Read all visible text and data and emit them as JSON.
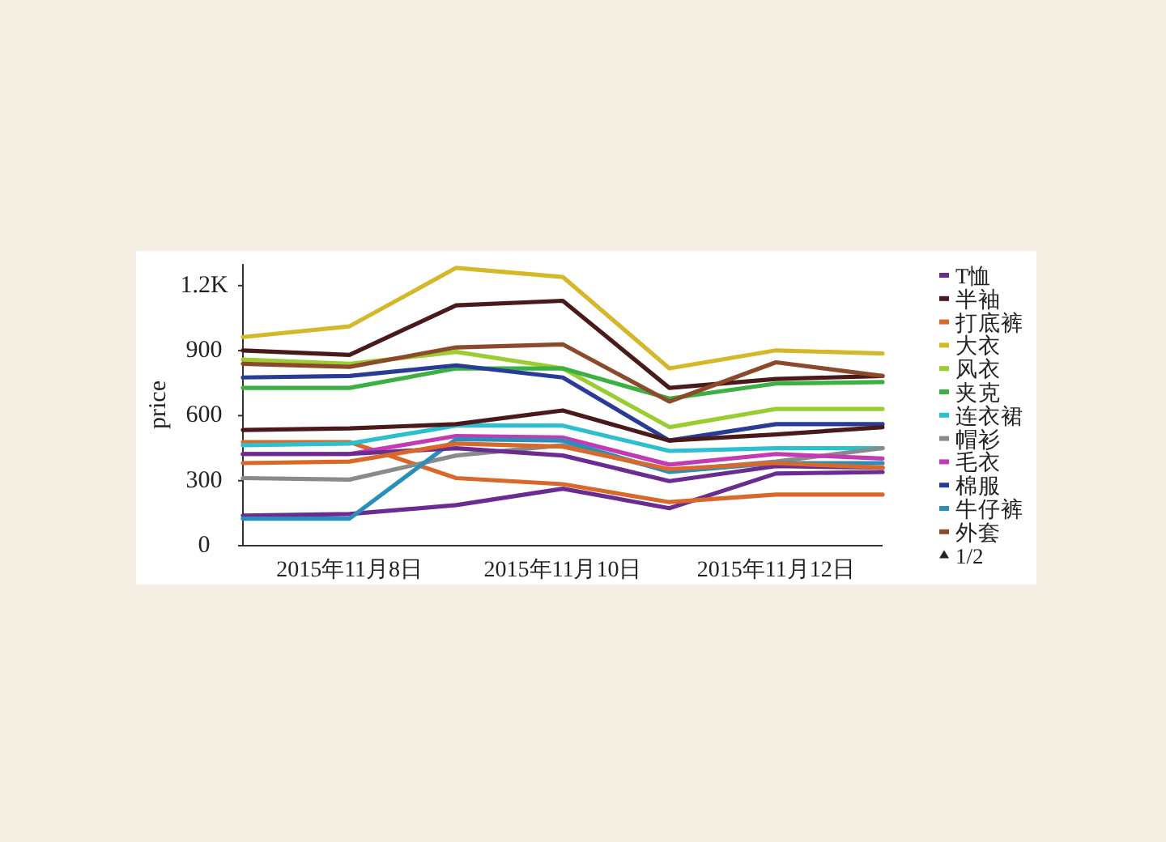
{
  "chart_data": {
    "type": "line",
    "ylabel": "price",
    "categories": [
      null,
      "2015年11月8日",
      null,
      "2015年11月10日",
      null,
      "2015年11月12日",
      null
    ],
    "ylim": [
      0,
      1300
    ],
    "yticks": [
      0,
      300,
      600,
      900,
      {
        "value": 1200,
        "label": "1.2K"
      }
    ],
    "legend": "right",
    "grid": false,
    "annotations": [
      "1/2"
    ],
    "series": [
      {
        "name": "T恤",
        "color": "#6a2c91",
        "values": [
          139,
          146,
          187,
          263,
          173,
          333,
          340
        ]
      },
      {
        "name": "半袖",
        "color": "#4a1a1a",
        "values": [
          901,
          880,
          1109,
          1130,
          728,
          769,
          783
        ]
      },
      {
        "name": "打底裤",
        "color": "#d9692a",
        "values": [
          478,
          478,
          312,
          284,
          201,
          236,
          236
        ]
      },
      {
        "name": "大衣",
        "color": "#d4b82a",
        "values": [
          963,
          1012,
          1282,
          1240,
          818,
          901,
          887
        ]
      },
      {
        "name": "风衣",
        "color": "#9acd32",
        "values": [
          859,
          839,
          894,
          818,
          547,
          631,
          631
        ]
      },
      {
        "name": "夹克",
        "color": "#3cb043",
        "values": [
          728,
          728,
          818,
          818,
          679,
          748,
          755
        ]
      },
      {
        "name": "连衣裙",
        "color": "#2bbfcf",
        "values": [
          464,
          471,
          554,
          554,
          437,
          450,
          450
        ]
      },
      {
        "name": "帽衫",
        "color": "#8a8a8a",
        "values": [
          312,
          305,
          416,
          464,
          346,
          388,
          450
        ]
      },
      {
        "name": "毛衣",
        "color": "#c43ab5",
        "values": [
          423,
          423,
          506,
          499,
          374,
          423,
          402
        ]
      },
      {
        "name": "棉服",
        "color": "#283c96",
        "values": [
          776,
          783,
          832,
          776,
          485,
          561,
          561
        ]
      },
      {
        "name": "牛仔裤",
        "color": "#2a8fb8",
        "values": [
          125,
          125,
          492,
          485,
          340,
          381,
          381
        ]
      },
      {
        "name": "外套",
        "color": "#8b4a2b",
        "values": [
          839,
          825,
          915,
          929,
          665,
          846,
          783
        ]
      },
      {
        "color": "#6a2c91",
        "values": [
          423,
          423,
          450,
          416,
          298,
          367,
          360
        ]
      },
      {
        "color": "#4a1a1a",
        "values": [
          534,
          541,
          561,
          624,
          485,
          513,
          547
        ]
      },
      {
        "color": "#d9692a",
        "values": [
          381,
          388,
          471,
          457,
          353,
          381,
          360
        ]
      }
    ]
  }
}
